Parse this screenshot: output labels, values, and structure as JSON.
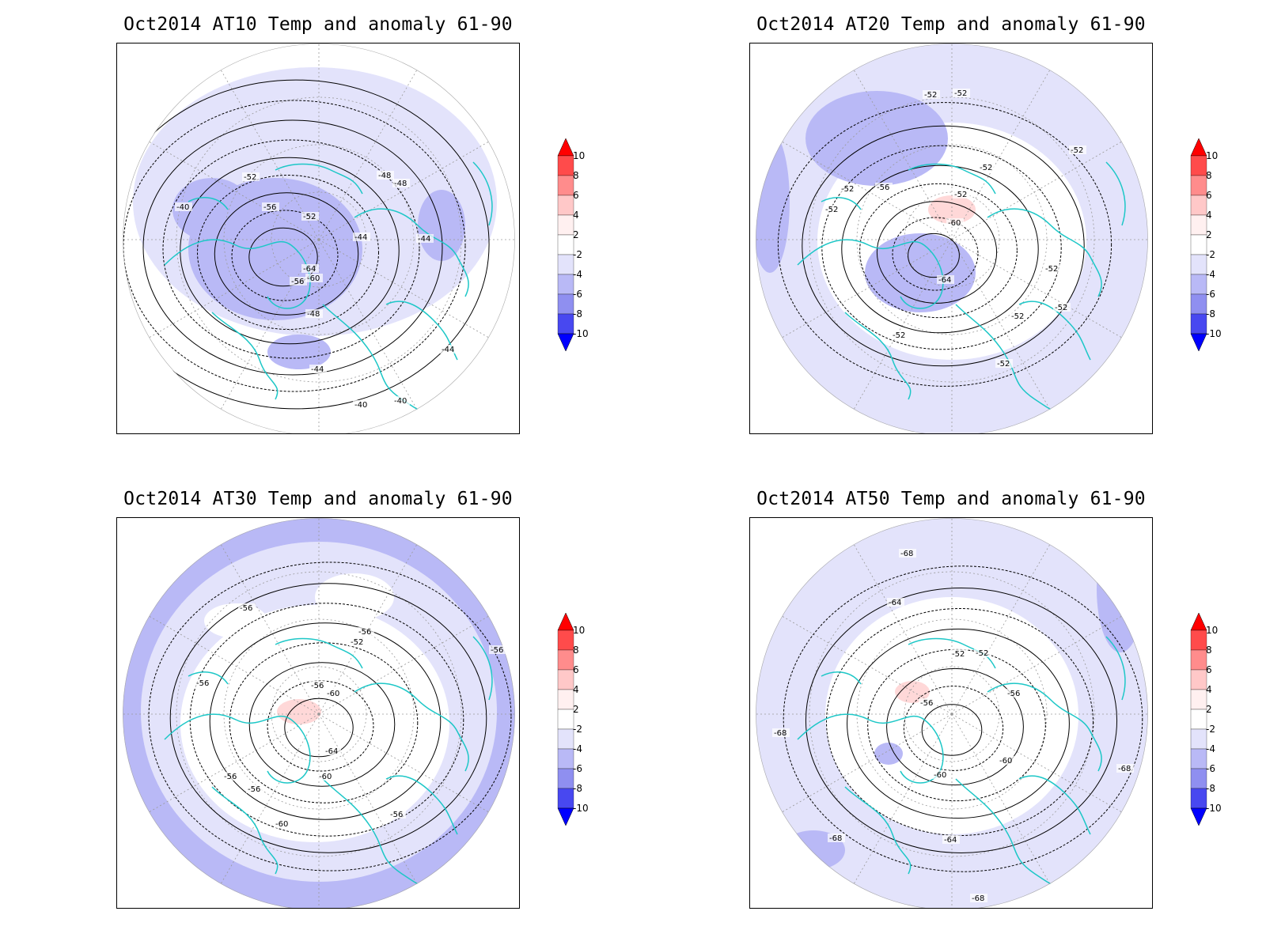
{
  "panels": [
    {
      "id": "at10",
      "title": "Oct2014 AT10 Temp and anomaly 61-90",
      "contour_labels": [
        "-40",
        "-40",
        "-40",
        "-44",
        "-44",
        "-44",
        "-44",
        "-48",
        "-48",
        "-48",
        "-52",
        "-52",
        "-56",
        "-56",
        "-60",
        "-64"
      ]
    },
    {
      "id": "at20",
      "title": "Oct2014 AT20 Temp and anomaly 61-90",
      "contour_labels": [
        "-52",
        "-52",
        "-52",
        "-52",
        "-52",
        "-52",
        "-52",
        "-52",
        "-52",
        "-52",
        "-52",
        "-52",
        "-56",
        "-60",
        "-64"
      ]
    },
    {
      "id": "at30",
      "title": "Oct2014 AT30 Temp and anomaly 61-90",
      "contour_labels": [
        "-56",
        "-56",
        "-56",
        "-56",
        "-56",
        "-56",
        "-56",
        "-52",
        "-60",
        "-60",
        "-64",
        "-60",
        "-56"
      ]
    },
    {
      "id": "at50",
      "title": "Oct2014 AT50 Temp and anomaly 61-90",
      "contour_labels": [
        "-68",
        "-64",
        "-52",
        "-52",
        "-56",
        "-56",
        "-60",
        "-60",
        "-64",
        "-68",
        "-68",
        "-68",
        "-68"
      ]
    }
  ],
  "colorbar": {
    "labels": [
      "10",
      "8",
      "6",
      "4",
      "2",
      "-2",
      "-4",
      "-6",
      "-8",
      "-10"
    ],
    "colors": [
      "#ff0000",
      "#ff4b4b",
      "#ff8c8c",
      "#ffc8c8",
      "#fff0f0",
      "#ffffff",
      "#e3e3fb",
      "#b9b9f6",
      "#8f8ff0",
      "#4848f0",
      "#0000ff"
    ]
  },
  "map_colors": {
    "coast": "#1dc7c7",
    "contour": "#000000",
    "grid": "#9a9a9a"
  }
}
